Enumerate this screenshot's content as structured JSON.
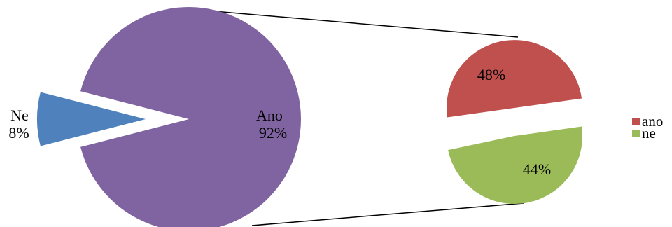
{
  "chart_data": {
    "type": "pie",
    "main_pie": {
      "slices": [
        {
          "label": "Ano",
          "percent_label": "92%",
          "value": 92,
          "color": "#8064A2"
        },
        {
          "label": "Ne",
          "percent_label": "8%",
          "value": 8,
          "color": "#4F81BD"
        }
      ]
    },
    "secondary_pie": {
      "slices": [
        {
          "percent_label": "48%",
          "value": 48,
          "color": "#C0504D",
          "legend": "ano"
        },
        {
          "percent_label": "44%",
          "value": 44,
          "color": "#9BBB59",
          "legend": "ne"
        }
      ]
    },
    "legend": {
      "position": "right",
      "items": [
        {
          "label": "ano",
          "color": "#C0504D"
        },
        {
          "label": "ne",
          "color": "#9BBB59"
        }
      ]
    }
  }
}
